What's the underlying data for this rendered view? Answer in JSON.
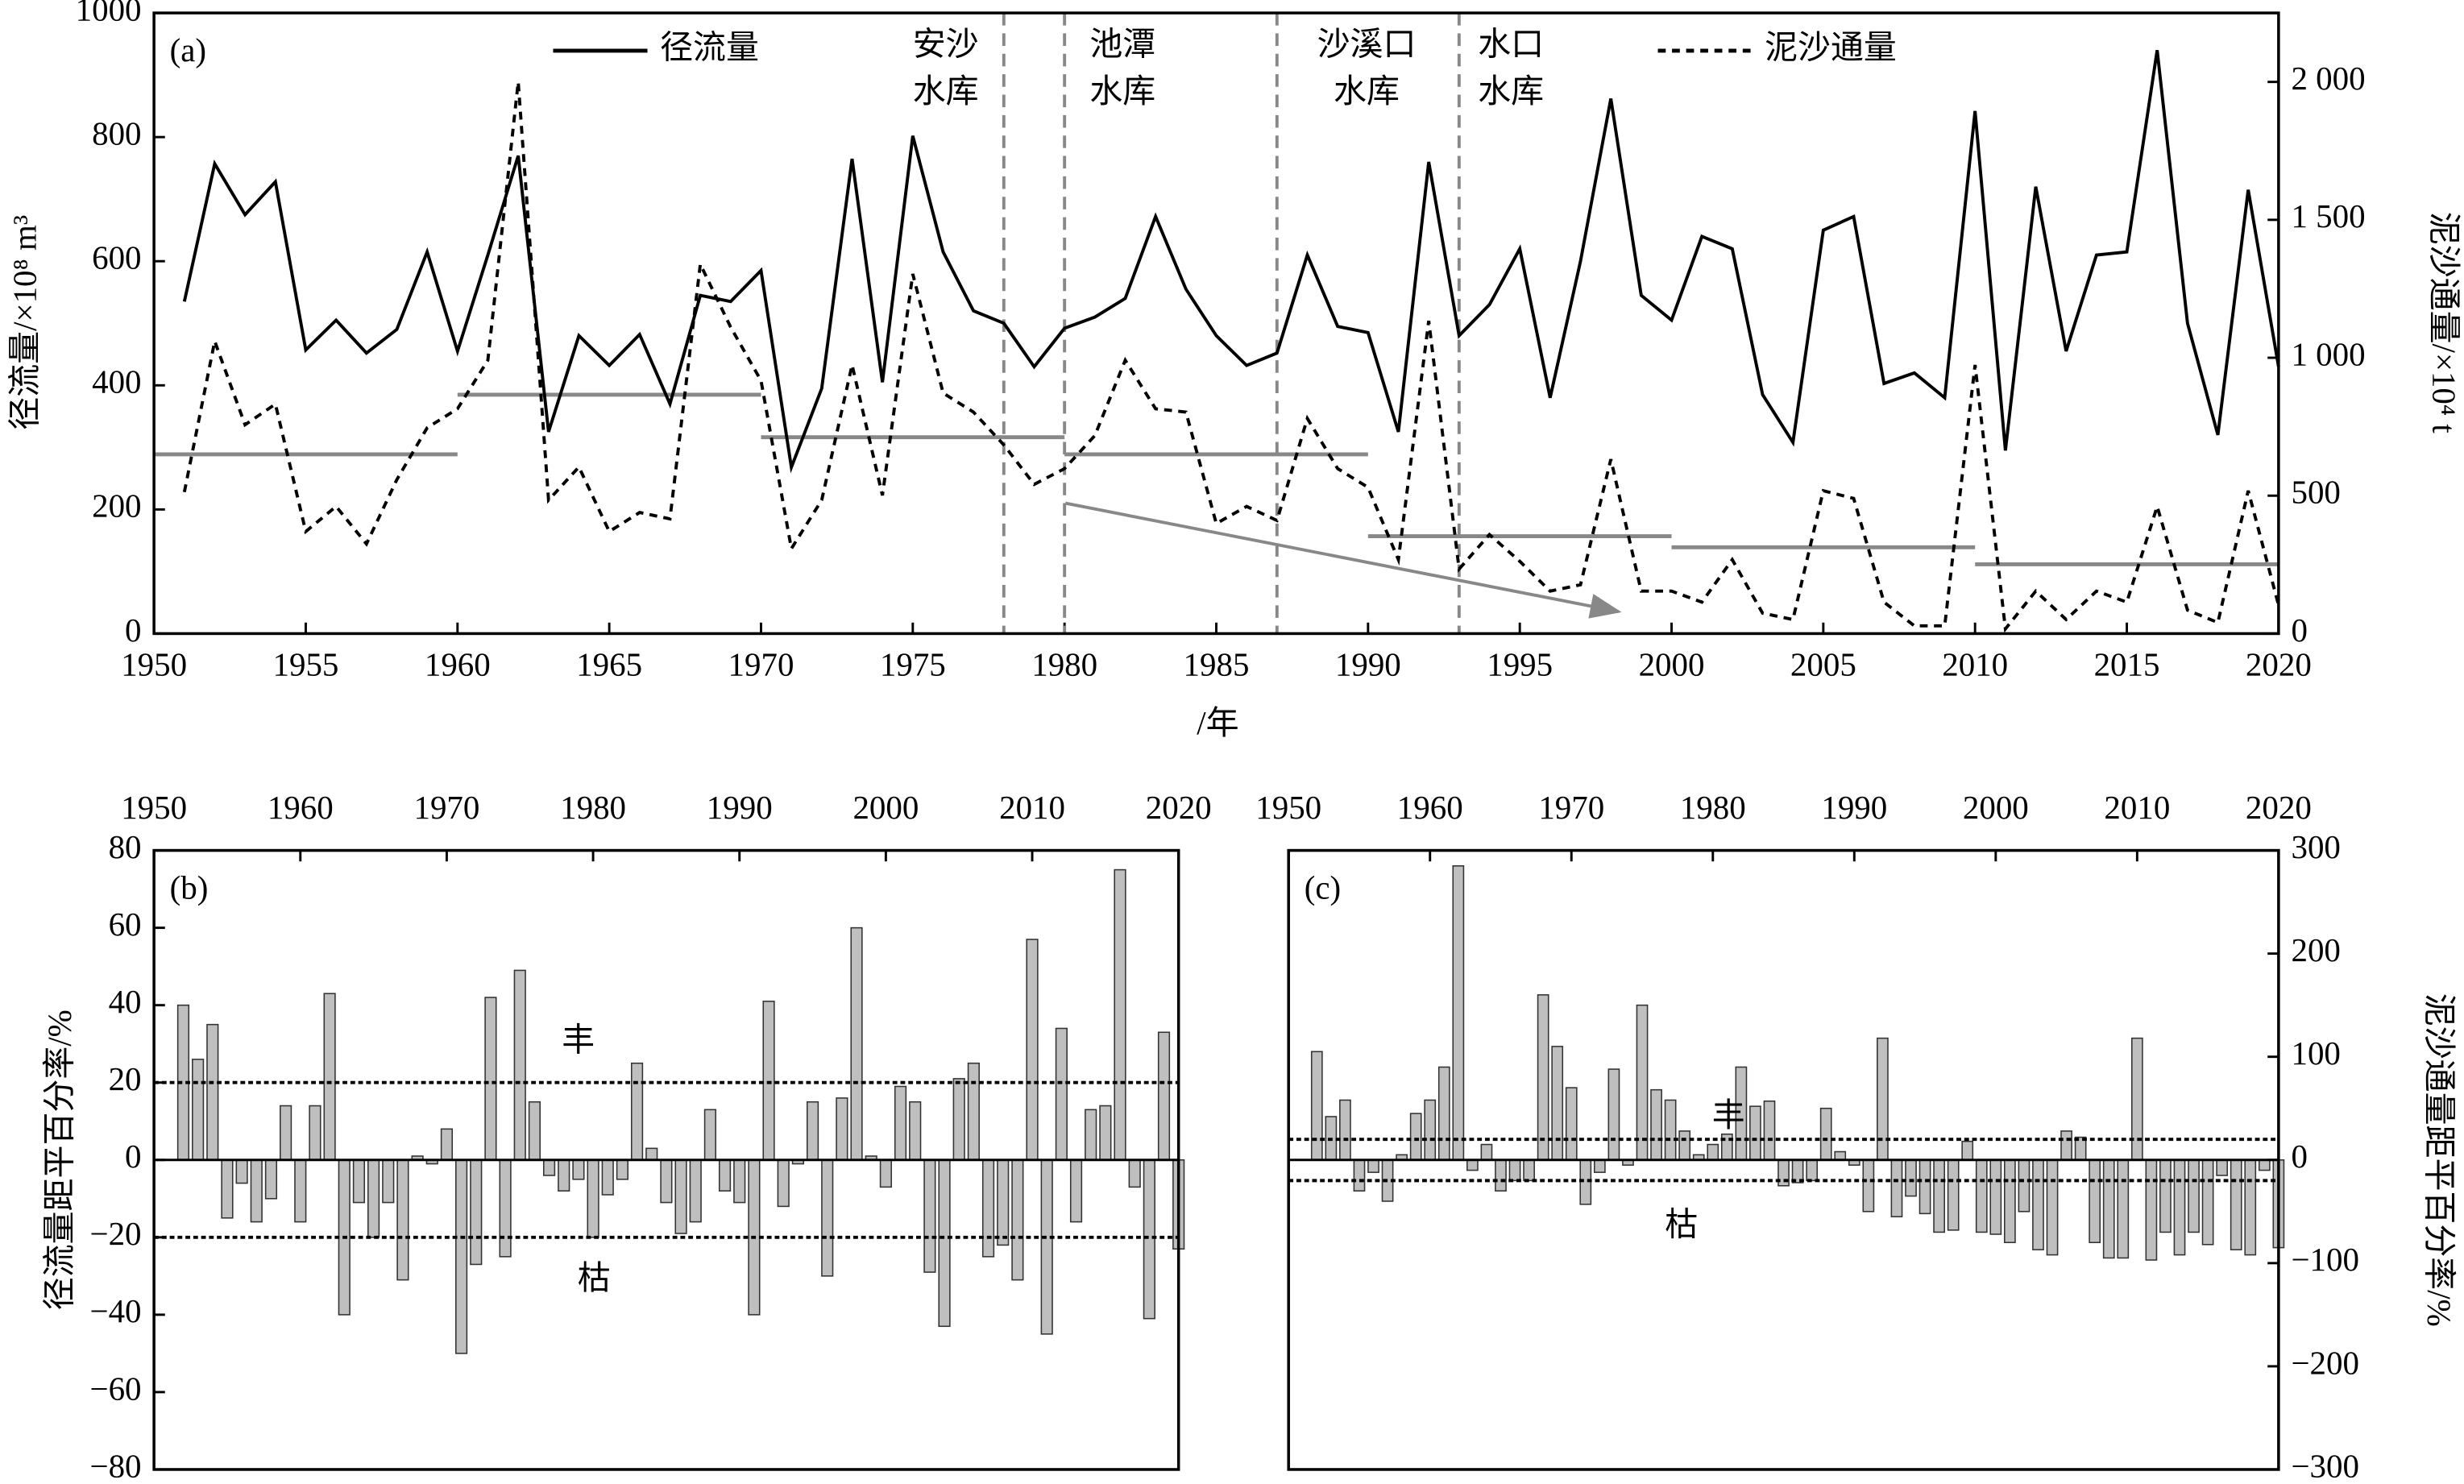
{
  "chart_data": [
    {
      "type": "line",
      "title": "(a)",
      "x_label": "/年",
      "y_label": "径流量/×10⁸ m³",
      "y2_label": "泥沙通量/×10⁴ t",
      "x": [
        1951,
        1952,
        1953,
        1954,
        1955,
        1956,
        1957,
        1958,
        1959,
        1960,
        1961,
        1962,
        1963,
        1964,
        1965,
        1966,
        1967,
        1968,
        1969,
        1970,
        1971,
        1972,
        1973,
        1974,
        1975,
        1976,
        1977,
        1978,
        1979,
        1980,
        1981,
        1982,
        1983,
        1984,
        1985,
        1986,
        1987,
        1988,
        1989,
        1990,
        1991,
        1992,
        1993,
        1994,
        1995,
        1996,
        1997,
        1998,
        1999,
        2000,
        2001,
        2002,
        2003,
        2004,
        2005,
        2006,
        2007,
        2008,
        2009,
        2010,
        2011,
        2012,
        2013,
        2014,
        2015,
        2016,
        2017,
        2018,
        2019,
        2020
      ],
      "series": [
        {
          "name": "径流量",
          "color": "#000000",
          "dashed": false,
          "values": [
            535,
            757,
            675,
            728,
            457,
            505,
            452,
            490,
            615,
            455,
            610,
            770,
            325,
            480,
            432,
            482,
            370,
            545,
            535,
            585,
            268,
            395,
            765,
            405,
            802,
            615,
            520,
            500,
            430,
            492,
            510,
            540,
            672,
            555,
            480,
            432,
            452,
            610,
            495,
            485,
            325,
            760,
            480,
            530,
            620,
            380,
            600,
            862,
            545,
            505,
            640,
            620,
            385,
            308,
            650,
            672,
            403,
            420,
            380,
            842,
            295,
            720,
            455,
            610,
            615,
            940,
            500,
            320,
            715,
            430
          ]
        },
        {
          "name": "泥沙通量",
          "color": "#000000",
          "dashed": true,
          "axis": "y2",
          "values": [
            513,
            1060,
            757,
            832,
            370,
            461,
            325,
            558,
            746,
            815,
            991,
            2000,
            484,
            604,
            370,
            439,
            416,
            1339,
            1111,
            917,
            308,
            484,
            974,
            501,
            1304,
            872,
            803,
            684,
            541,
            598,
            718,
            991,
            815,
            803,
            399,
            461,
            410,
            780,
            598,
            530,
            268,
            1134,
            234,
            359,
            262,
            154,
            177,
            632,
            154,
            154,
            114,
            268,
            74,
            51,
            518,
            490,
            114,
            28,
            28,
            974,
            17,
            154,
            51,
            154,
            114,
            461,
            85,
            40,
            518,
            103
          ]
        }
      ],
      "segment_means": [
        {
          "x": [
            1950,
            1960
          ],
          "value": 650
        },
        {
          "x": [
            1960,
            1970
          ],
          "value": 866
        },
        {
          "x": [
            1970,
            1980
          ],
          "value": 712
        },
        {
          "x": [
            1980,
            1990
          ],
          "value": 650
        },
        {
          "x": [
            1990,
            2000
          ],
          "value": 353
        },
        {
          "x": [
            2000,
            2010
          ],
          "value": 313
        },
        {
          "x": [
            2010,
            2020
          ],
          "value": 251
        }
      ],
      "means_color": "#888888",
      "reservoirs": [
        {
          "year": 1978,
          "label": [
            "安沙",
            "水库"
          ]
        },
        {
          "year": 1980,
          "label": [
            "池潭",
            "水库"
          ]
        },
        {
          "year": 1987,
          "label": [
            "沙溪口",
            "水库"
          ]
        },
        {
          "year": 1993,
          "label": [
            "水口",
            "水库"
          ]
        }
      ],
      "xlim": [
        1950,
        2020
      ],
      "xticks": [
        1950,
        1955,
        1960,
        1965,
        1970,
        1975,
        1980,
        1985,
        1990,
        1995,
        2000,
        2005,
        2010,
        2015,
        2020
      ],
      "ylim": [
        0,
        1000
      ],
      "yticks": [
        0,
        200,
        400,
        600,
        800,
        1000
      ],
      "y2lim": [
        0,
        2250
      ],
      "y2ticks": [
        0,
        500,
        {
          "value": 1000,
          "label": "1 000"
        },
        {
          "value": 1500,
          "label": "1 500"
        },
        {
          "value": 2000,
          "label": "2 000"
        }
      ]
    },
    {
      "type": "bar",
      "title": "(b)",
      "y_label": "径流量距平百分率/%",
      "color": "#bfbfbf",
      "x": [
        1952,
        1953,
        1954,
        1955,
        1956,
        1957,
        1958,
        1959,
        1960,
        1961,
        1962,
        1963,
        1964,
        1965,
        1966,
        1967,
        1968,
        1969,
        1970,
        1971,
        1972,
        1973,
        1974,
        1975,
        1976,
        1977,
        1978,
        1979,
        1980,
        1981,
        1982,
        1983,
        1984,
        1985,
        1986,
        1987,
        1988,
        1989,
        1990,
        1991,
        1992,
        1993,
        1994,
        1995,
        1996,
        1997,
        1998,
        1999,
        2000,
        2001,
        2002,
        2003,
        2004,
        2005,
        2006,
        2007,
        2008,
        2009,
        2010,
        2011,
        2012,
        2013,
        2014,
        2015,
        2016,
        2017,
        2018,
        2019,
        2020
      ],
      "values": [
        40,
        26,
        35,
        -15,
        -6,
        -16,
        -10,
        14,
        -16,
        14,
        43,
        -40,
        -11,
        -20,
        -11,
        -31,
        1,
        -1,
        8,
        -50,
        -27,
        42,
        -25,
        49,
        15,
        -4,
        -8,
        -5,
        -20,
        -9,
        -5,
        25,
        3,
        -11,
        -19,
        -16,
        13,
        -8,
        -11,
        -40,
        41,
        -12,
        -1,
        15,
        -30,
        16,
        60,
        1,
        -7,
        19,
        15,
        -29,
        -43,
        21,
        25,
        -25,
        -22,
        -31,
        57,
        -45,
        34,
        -16,
        13,
        14,
        75,
        -7,
        -41,
        33,
        -23
      ],
      "thresholds": [
        20,
        -20
      ],
      "threshold_labels": [
        "丰",
        "枯"
      ],
      "yaxis_side": "left",
      "xlim": [
        1950,
        2020
      ],
      "xticks": [
        1950,
        1960,
        1970,
        1980,
        1990,
        2000,
        2010,
        2020
      ],
      "ylim": [
        -80,
        80
      ],
      "yticks": [
        {
          "value": -80,
          "label": "−80"
        },
        {
          "value": -60,
          "label": "−60"
        },
        {
          "value": -40,
          "label": "−40"
        },
        {
          "value": -20,
          "label": "−20"
        },
        0,
        20,
        40,
        60,
        80
      ]
    },
    {
      "type": "bar",
      "title": "(c)",
      "y_label": "泥沙通量距平百分率/%",
      "color": "#bfbfbf",
      "x": [
        1952,
        1953,
        1954,
        1955,
        1956,
        1957,
        1958,
        1959,
        1960,
        1961,
        1962,
        1963,
        1964,
        1965,
        1966,
        1967,
        1968,
        1969,
        1970,
        1971,
        1972,
        1973,
        1974,
        1975,
        1976,
        1977,
        1978,
        1979,
        1980,
        1981,
        1982,
        1983,
        1984,
        1985,
        1986,
        1987,
        1988,
        1989,
        1990,
        1991,
        1992,
        1993,
        1994,
        1995,
        1996,
        1997,
        1998,
        1999,
        2000,
        2001,
        2002,
        2003,
        2004,
        2005,
        2006,
        2007,
        2008,
        2009,
        2010,
        2011,
        2012,
        2013,
        2014,
        2015,
        2016,
        2017,
        2018,
        2019,
        2020
      ],
      "values": [
        105,
        42,
        58,
        -30,
        -12,
        -40,
        5,
        45,
        58,
        90,
        285,
        -10,
        15,
        -30,
        -20,
        -20,
        160,
        110,
        70,
        -43,
        -12,
        88,
        -5,
        150,
        68,
        58,
        28,
        5,
        15,
        25,
        90,
        52,
        57,
        -25,
        -22,
        -20,
        50,
        8,
        -5,
        -50,
        118,
        -55,
        -35,
        -52,
        -70,
        -68,
        18,
        -70,
        -72,
        -80,
        -50,
        -87,
        -92,
        28,
        22,
        -80,
        -95,
        -95,
        118,
        -97,
        -70,
        -92,
        -70,
        -82,
        -15,
        -87,
        -92,
        -10,
        -85
      ],
      "thresholds": [
        20,
        -20
      ],
      "threshold_labels": [
        "丰",
        "枯"
      ],
      "yaxis_side": "right",
      "xlim": [
        1950,
        2020
      ],
      "xticks": [
        1950,
        1960,
        1970,
        1980,
        1990,
        2000,
        2010,
        2020
      ],
      "ylim": [
        -300,
        300
      ],
      "yticks": [
        {
          "value": -300,
          "label": "−300"
        },
        {
          "value": -200,
          "label": "−200"
        },
        {
          "value": -100,
          "label": "−100"
        },
        0,
        100,
        200,
        300
      ]
    }
  ]
}
